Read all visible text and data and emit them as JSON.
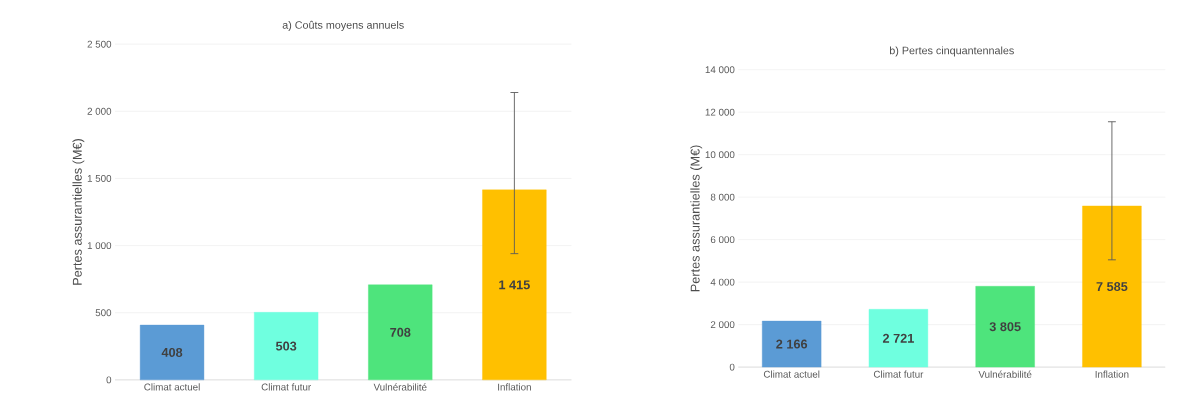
{
  "chart_data": [
    {
      "type": "bar",
      "title": "a) Coûts moyens annuels",
      "ylabel": "Pertes assurantielles (M€)",
      "categories": [
        "Climat actuel",
        "Climat futur",
        "Vulnérabilité",
        "Inflation"
      ],
      "values": [
        408,
        503,
        708,
        1415
      ],
      "value_labels": [
        "408",
        "503",
        "708",
        "1 415"
      ],
      "colors": [
        "#5b9bd5",
        "#6fffdf",
        "#4ee47c",
        "#ffc000"
      ],
      "errors": [
        null,
        null,
        null,
        [
          940,
          2140
        ]
      ],
      "ylim": [
        0,
        2500
      ],
      "yticks": [
        {
          "value": 0,
          "label": "0"
        },
        {
          "value": 500,
          "label": "500"
        },
        {
          "value": 1000,
          "label": "1 000"
        },
        {
          "value": 1500,
          "label": "1 500"
        },
        {
          "value": 2000,
          "label": "2 000"
        },
        {
          "value": 2500,
          "label": "2 500"
        }
      ],
      "grid": "y"
    },
    {
      "type": "bar",
      "title": "b) Pertes cinquantennales",
      "ylabel": "Pertes assurantielles (M€)",
      "categories": [
        "Climat actuel",
        "Climat futur",
        "Vulnérabilité",
        "Inflation"
      ],
      "values": [
        2166,
        2721,
        3805,
        7585
      ],
      "value_labels": [
        "2 166",
        "2 721",
        "3 805",
        "7 585"
      ],
      "colors": [
        "#5b9bd5",
        "#6fffdf",
        "#4ee47c",
        "#ffc000"
      ],
      "errors": [
        null,
        null,
        null,
        [
          5050,
          11550
        ]
      ],
      "ylim": [
        0,
        14000
      ],
      "yticks": [
        {
          "value": 0,
          "label": "0"
        },
        {
          "value": 2000,
          "label": "2 000"
        },
        {
          "value": 4000,
          "label": "4 000"
        },
        {
          "value": 6000,
          "label": "6 000"
        },
        {
          "value": 8000,
          "label": "8 000"
        },
        {
          "value": 10000,
          "label": "10 000"
        },
        {
          "value": 12000,
          "label": "12 000"
        },
        {
          "value": 14000,
          "label": "14 000"
        }
      ],
      "grid": "y"
    }
  ]
}
